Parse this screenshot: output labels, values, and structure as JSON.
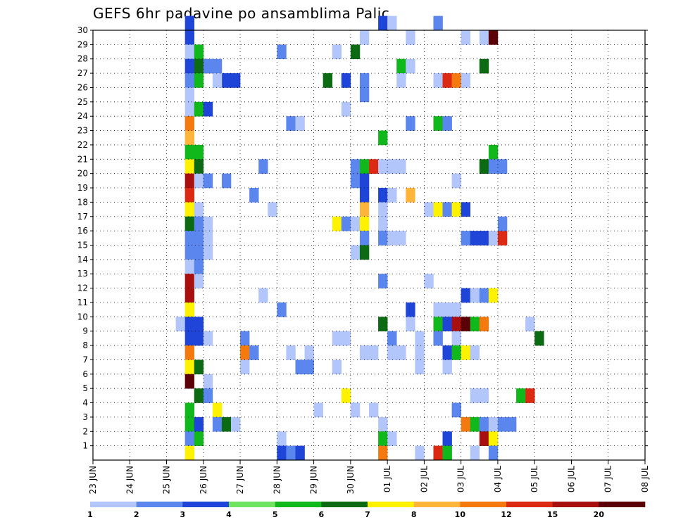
{
  "chart_data": {
    "type": "heatmap",
    "title": "GEFS 6hr padavine po ansamblima Palic",
    "y_ticks": [
      "1",
      "2",
      "3",
      "4",
      "5",
      "6",
      "7",
      "8",
      "9",
      "10",
      "11",
      "12",
      "13",
      "14",
      "15",
      "16",
      "17",
      "18",
      "19",
      "20",
      "21",
      "22",
      "23",
      "24",
      "25",
      "26",
      "27",
      "28",
      "29",
      "30"
    ],
    "y_range": [
      0,
      30
    ],
    "x_ticks": [
      "23 JUN",
      "24 JUN",
      "25 JUN",
      "26 JUN",
      "27 JUN",
      "28 JUN",
      "29 JUN",
      "30 JUN",
      "01 JUL",
      "02 JUL",
      "03 JUL",
      "04 JUL",
      "05 JUL",
      "06 JUL",
      "07 JUL",
      "08 JUL"
    ],
    "x_range": [
      0,
      60
    ],
    "x_unit": "6-hour steps from 23 JUN 00Z",
    "grid": true,
    "colorbar": {
      "labels": [
        "1",
        "2",
        "3",
        "4",
        "5",
        "6",
        "7",
        "8",
        "10",
        "12",
        "15",
        "20"
      ],
      "colors": [
        "#b3c6fb",
        "#5b86ee",
        "#1f45d8",
        "#6fe460",
        "#10b81c",
        "#0c6a12",
        "#fff200",
        "#ffb43c",
        "#f47a10",
        "#dc2a12",
        "#a81010",
        "#5c0008"
      ]
    },
    "cells": [
      [
        10,
        30,
        3
      ],
      [
        10,
        29,
        3
      ],
      [
        10,
        28,
        1
      ],
      [
        11,
        28,
        5
      ],
      [
        10,
        27,
        3
      ],
      [
        11,
        27,
        6
      ],
      [
        12,
        27,
        2
      ],
      [
        13,
        27,
        2
      ],
      [
        10,
        26,
        2
      ],
      [
        11,
        26,
        5
      ],
      [
        10,
        25,
        1
      ],
      [
        10,
        24,
        1
      ],
      [
        11,
        24,
        5
      ],
      [
        12,
        24,
        3
      ],
      [
        10,
        23,
        9
      ],
      [
        10,
        22,
        8
      ],
      [
        10,
        21,
        5
      ],
      [
        11,
        21,
        5
      ],
      [
        10,
        20,
        7
      ],
      [
        11,
        20,
        6
      ],
      [
        10,
        19,
        11
      ],
      [
        11,
        19,
        1
      ],
      [
        12,
        19,
        2
      ],
      [
        10,
        18,
        10
      ],
      [
        10,
        17,
        7
      ],
      [
        11,
        17,
        1
      ],
      [
        10,
        16,
        6
      ],
      [
        11,
        16,
        2
      ],
      [
        12,
        16,
        1
      ],
      [
        10,
        15,
        2
      ],
      [
        11,
        15,
        2
      ],
      [
        12,
        15,
        1
      ],
      [
        10,
        14,
        2
      ],
      [
        11,
        14,
        2
      ],
      [
        12,
        14,
        1
      ],
      [
        10,
        13,
        1
      ],
      [
        11,
        13,
        2
      ],
      [
        10,
        12,
        11
      ],
      [
        11,
        12,
        1
      ],
      [
        10,
        11,
        11
      ],
      [
        10,
        10,
        7
      ],
      [
        9,
        9,
        1
      ],
      [
        10,
        9,
        3
      ],
      [
        11,
        9,
        3
      ],
      [
        10,
        8,
        3
      ],
      [
        11,
        8,
        3
      ],
      [
        12,
        8,
        1
      ],
      [
        10,
        7,
        9
      ],
      [
        10,
        6,
        7
      ],
      [
        11,
        6,
        6
      ],
      [
        10,
        5,
        12
      ],
      [
        12,
        5,
        1
      ],
      [
        11,
        4,
        6
      ],
      [
        12,
        4,
        2
      ],
      [
        10,
        3,
        5
      ],
      [
        13,
        3,
        7
      ],
      [
        10,
        2,
        5
      ],
      [
        11,
        2,
        3
      ],
      [
        13,
        2,
        2
      ],
      [
        14,
        2,
        6
      ],
      [
        15,
        2,
        1
      ],
      [
        10,
        1,
        2
      ],
      [
        11,
        1,
        5
      ],
      [
        10,
        0,
        7
      ],
      [
        14,
        26,
        3
      ],
      [
        15,
        26,
        3
      ],
      [
        13,
        26,
        1
      ],
      [
        14,
        19,
        2
      ],
      [
        16,
        8,
        2
      ],
      [
        16,
        7,
        9
      ],
      [
        17,
        7,
        2
      ],
      [
        16,
        6,
        1
      ],
      [
        18,
        20,
        2
      ],
      [
        17,
        18,
        2
      ],
      [
        19,
        17,
        1
      ],
      [
        18,
        11,
        1
      ],
      [
        31,
        30,
        3
      ],
      [
        32,
        30,
        1
      ],
      [
        37,
        30,
        2
      ],
      [
        29,
        29,
        1
      ],
      [
        34,
        29,
        1
      ],
      [
        40,
        29,
        1
      ],
      [
        42,
        29,
        1
      ],
      [
        43,
        29,
        12
      ],
      [
        20,
        28,
        2
      ],
      [
        26,
        28,
        1
      ],
      [
        28,
        28,
        6
      ],
      [
        33,
        27,
        5
      ],
      [
        34,
        27,
        1
      ],
      [
        42,
        27,
        6
      ],
      [
        25,
        26,
        6
      ],
      [
        27,
        26,
        3
      ],
      [
        29,
        26,
        2
      ],
      [
        33,
        26,
        1
      ],
      [
        37,
        26,
        1
      ],
      [
        38,
        26,
        10
      ],
      [
        39,
        26,
        9
      ],
      [
        40,
        26,
        1
      ],
      [
        29,
        25,
        2
      ],
      [
        27,
        24,
        1
      ],
      [
        34,
        23,
        2
      ],
      [
        21,
        23,
        2
      ],
      [
        22,
        23,
        1
      ],
      [
        37,
        23,
        5
      ],
      [
        38,
        23,
        2
      ],
      [
        31,
        22,
        5
      ],
      [
        43,
        21,
        5
      ],
      [
        28,
        20,
        2
      ],
      [
        29,
        20,
        5
      ],
      [
        30,
        20,
        10
      ],
      [
        31,
        20,
        1
      ],
      [
        32,
        20,
        1
      ],
      [
        33,
        20,
        1
      ],
      [
        42,
        20,
        6
      ],
      [
        43,
        20,
        2
      ],
      [
        44,
        20,
        2
      ],
      [
        28,
        19,
        2
      ],
      [
        29,
        19,
        3
      ],
      [
        39,
        19,
        1
      ],
      [
        29,
        18,
        3
      ],
      [
        31,
        18,
        3
      ],
      [
        32,
        18,
        1
      ],
      [
        34,
        18,
        8
      ],
      [
        29,
        17,
        8
      ],
      [
        31,
        17,
        1
      ],
      [
        36,
        17,
        1
      ],
      [
        37,
        17,
        7
      ],
      [
        38,
        17,
        2
      ],
      [
        39,
        17,
        7
      ],
      [
        40,
        17,
        3
      ],
      [
        26,
        16,
        7
      ],
      [
        27,
        16,
        2
      ],
      [
        28,
        16,
        1
      ],
      [
        29,
        16,
        7
      ],
      [
        31,
        16,
        1
      ],
      [
        29,
        15,
        2
      ],
      [
        31,
        15,
        2
      ],
      [
        32,
        15,
        1
      ],
      [
        33,
        15,
        1
      ],
      [
        40,
        15,
        2
      ],
      [
        41,
        15,
        3
      ],
      [
        42,
        15,
        3
      ],
      [
        43,
        15,
        1
      ],
      [
        44,
        15,
        10
      ],
      [
        44,
        16,
        2
      ],
      [
        28,
        14,
        1
      ],
      [
        29,
        14,
        6
      ],
      [
        31,
        12,
        2
      ],
      [
        36,
        12,
        1
      ],
      [
        40,
        11,
        3
      ],
      [
        41,
        11,
        1
      ],
      [
        42,
        11,
        2
      ],
      [
        43,
        11,
        7
      ],
      [
        20,
        10,
        2
      ],
      [
        34,
        10,
        3
      ],
      [
        37,
        10,
        1
      ],
      [
        38,
        10,
        1
      ],
      [
        39,
        10,
        1
      ],
      [
        31,
        9,
        6
      ],
      [
        34,
        9,
        1
      ],
      [
        37,
        9,
        5
      ],
      [
        38,
        9,
        3
      ],
      [
        39,
        9,
        11
      ],
      [
        40,
        9,
        12
      ],
      [
        41,
        9,
        5
      ],
      [
        42,
        9,
        9
      ],
      [
        47,
        9,
        1
      ],
      [
        32,
        8,
        2
      ],
      [
        26,
        8,
        1
      ],
      [
        27,
        8,
        1
      ],
      [
        35,
        8,
        1
      ],
      [
        37,
        8,
        2
      ],
      [
        39,
        8,
        1
      ],
      [
        48,
        8,
        6
      ],
      [
        21,
        7,
        1
      ],
      [
        23,
        7,
        1
      ],
      [
        29,
        7,
        1
      ],
      [
        30,
        7,
        1
      ],
      [
        32,
        7,
        1
      ],
      [
        33,
        7,
        1
      ],
      [
        35,
        7,
        1
      ],
      [
        38,
        7,
        3
      ],
      [
        39,
        7,
        5
      ],
      [
        40,
        7,
        7
      ],
      [
        41,
        7,
        1
      ],
      [
        22,
        6,
        2
      ],
      [
        23,
        6,
        2
      ],
      [
        26,
        6,
        1
      ],
      [
        35,
        6,
        1
      ],
      [
        38,
        6,
        1
      ],
      [
        27,
        4,
        7
      ],
      [
        41,
        4,
        1
      ],
      [
        42,
        4,
        1
      ],
      [
        46,
        4,
        5
      ],
      [
        47,
        4,
        10
      ],
      [
        24,
        3,
        1
      ],
      [
        28,
        3,
        1
      ],
      [
        30,
        3,
        1
      ],
      [
        39,
        3,
        2
      ],
      [
        31,
        2,
        1
      ],
      [
        40,
        2,
        9
      ],
      [
        41,
        2,
        5
      ],
      [
        42,
        2,
        2
      ],
      [
        43,
        2,
        1
      ],
      [
        44,
        2,
        2
      ],
      [
        45,
        2,
        2
      ],
      [
        20,
        1,
        1
      ],
      [
        31,
        1,
        5
      ],
      [
        32,
        1,
        1
      ],
      [
        38,
        1,
        3
      ],
      [
        42,
        1,
        11
      ],
      [
        43,
        1,
        7
      ],
      [
        20,
        0,
        3
      ],
      [
        21,
        0,
        2
      ],
      [
        22,
        0,
        3
      ],
      [
        31,
        0,
        9
      ],
      [
        35,
        0,
        1
      ],
      [
        37,
        0,
        10
      ],
      [
        38,
        0,
        5
      ],
      [
        41,
        0,
        1
      ],
      [
        43,
        0,
        2
      ]
    ]
  }
}
